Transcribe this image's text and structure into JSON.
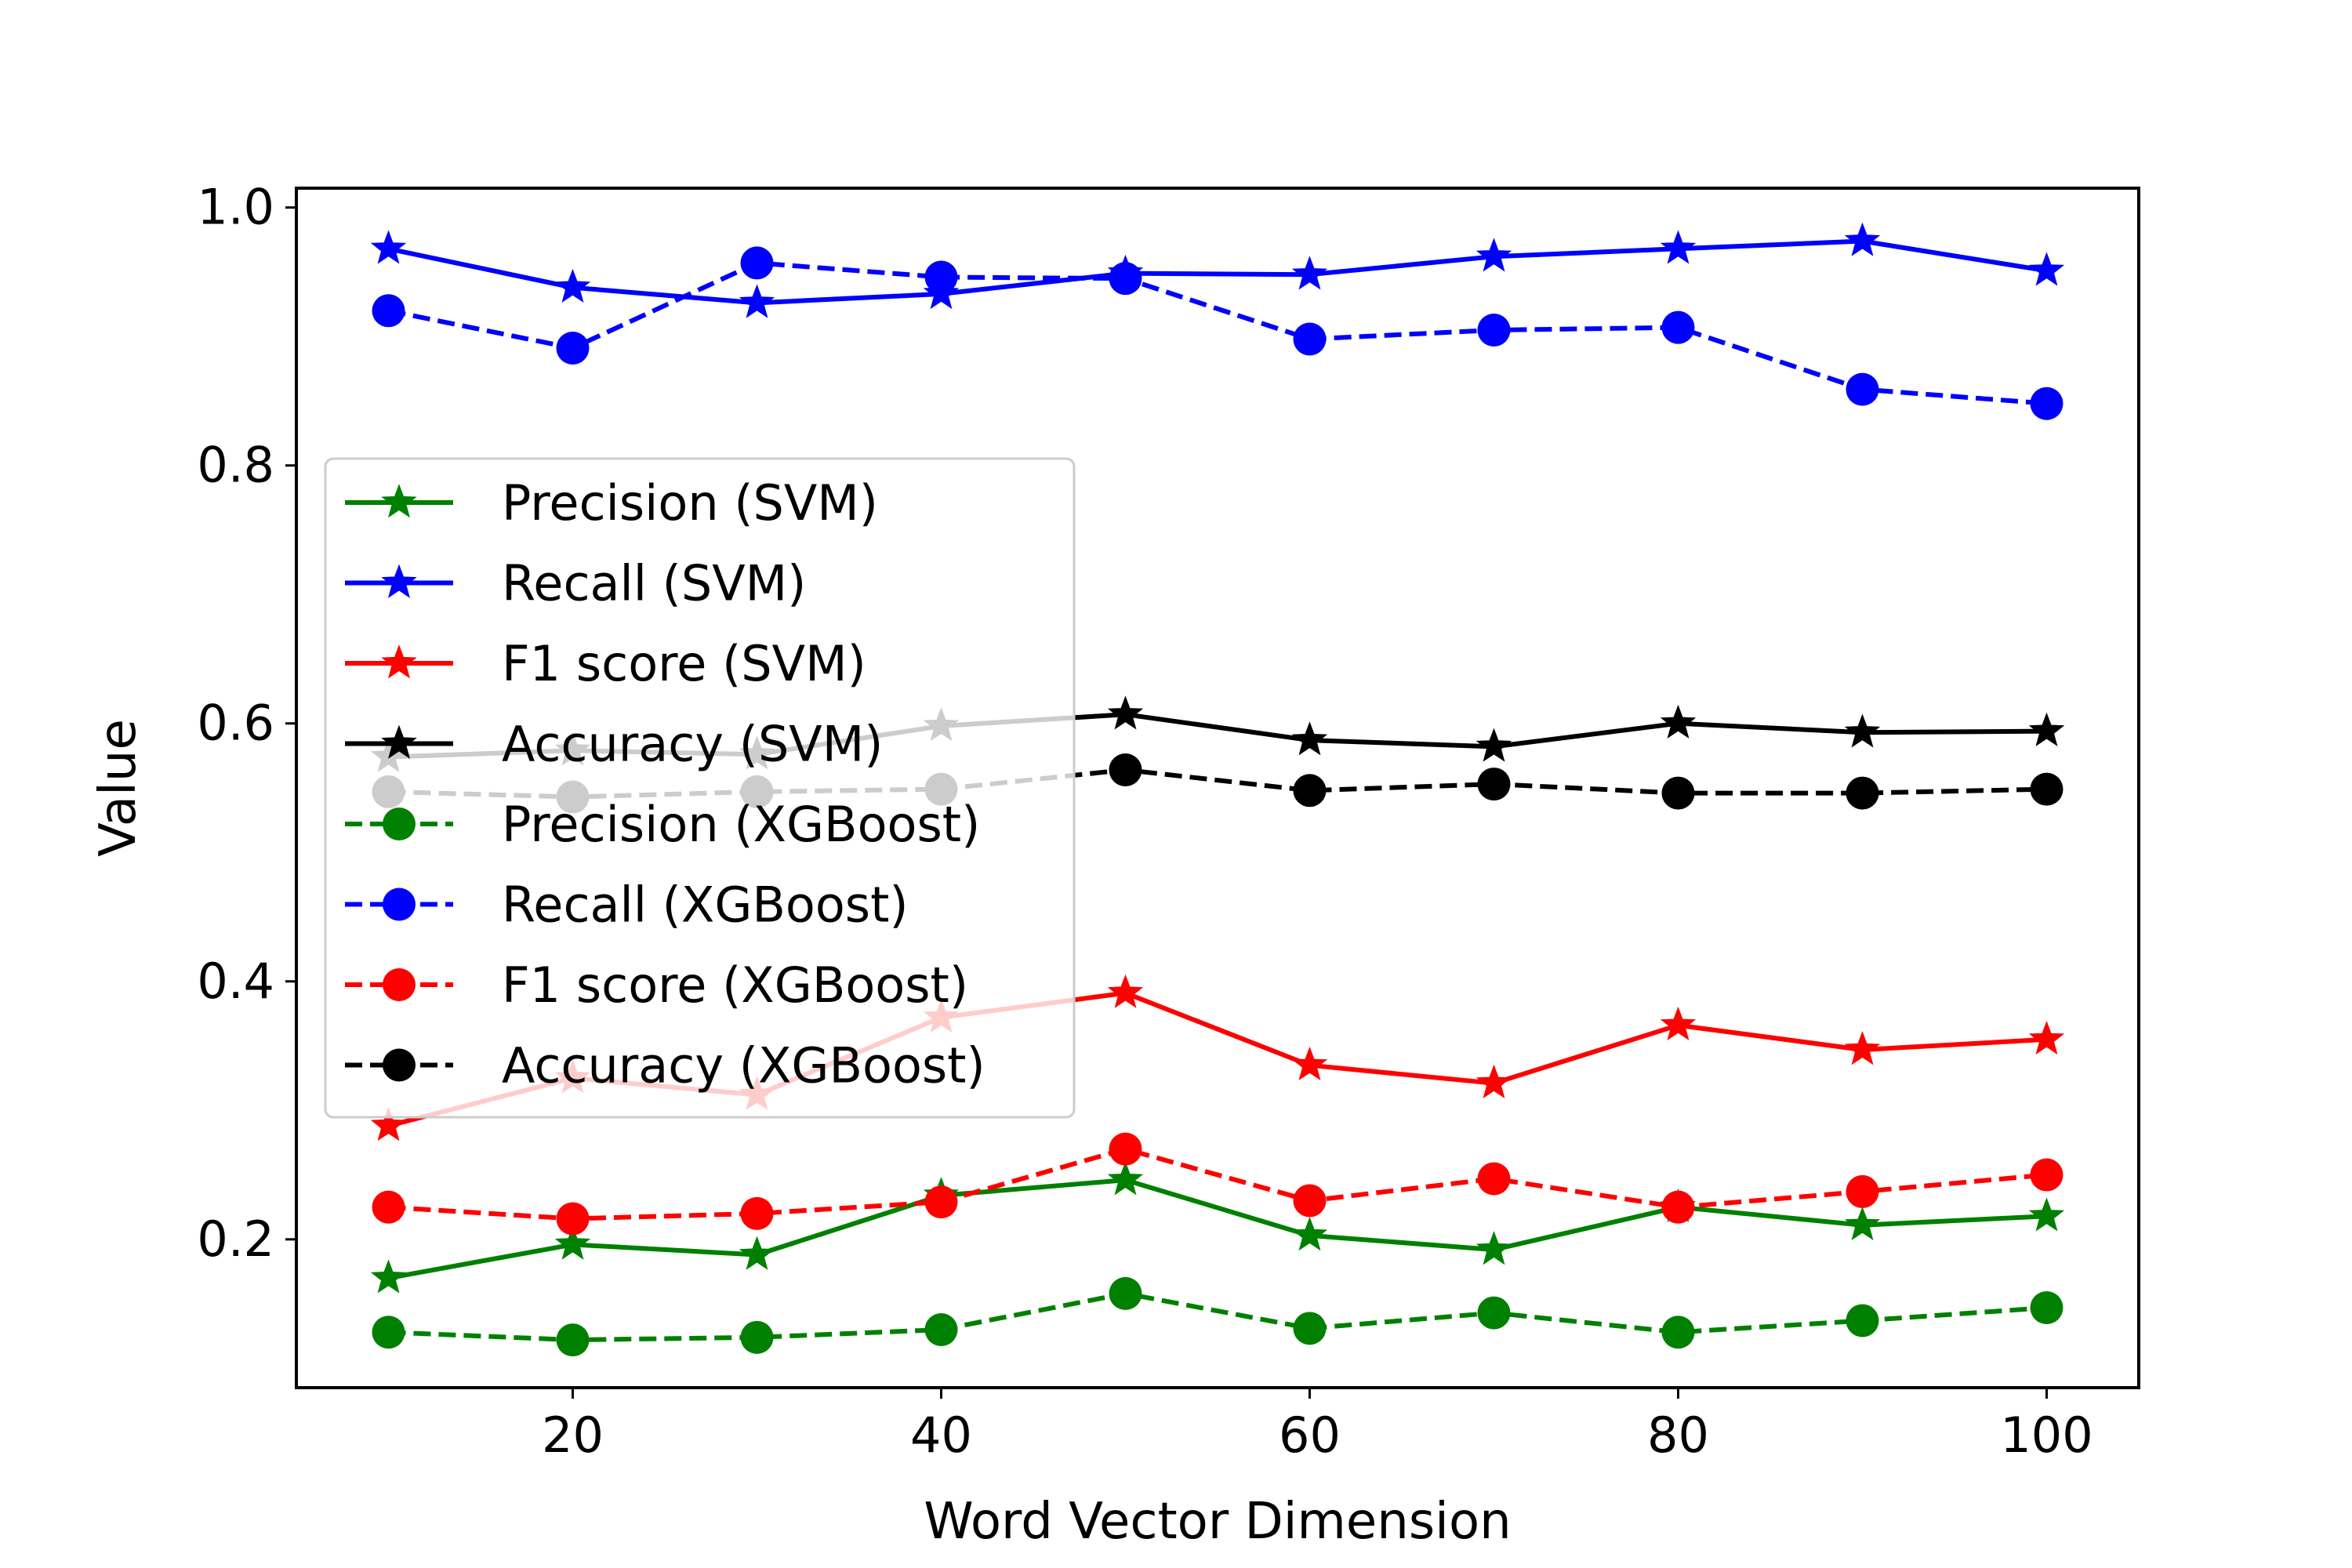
{
  "chart_data": {
    "type": "line",
    "title": "",
    "xlabel": "Word Vector Dimension",
    "ylabel": "Value",
    "x": [
      10,
      20,
      30,
      40,
      50,
      60,
      70,
      80,
      90,
      100
    ],
    "xlim": [
      5,
      105
    ],
    "ylim": [
      0.085,
      1.015
    ],
    "xticks": [
      20,
      40,
      60,
      80,
      100
    ],
    "yticks": [
      0.2,
      0.4,
      0.6,
      0.8,
      1.0
    ],
    "xtick_labels": [
      "20",
      "40",
      "60",
      "80",
      "100"
    ],
    "ytick_labels": [
      "0.2",
      "0.4",
      "0.6",
      "0.8",
      "1.0"
    ],
    "grid": false,
    "legend_position": "center-left",
    "series": [
      {
        "name": "Precision (SVM)",
        "color": "#008000",
        "linestyle": "solid",
        "marker": "star",
        "values": [
          0.17,
          0.196,
          0.188,
          0.234,
          0.246,
          0.203,
          0.192,
          0.225,
          0.211,
          0.218
        ]
      },
      {
        "name": "Recall (SVM)",
        "color": "#0000ff",
        "linestyle": "solid",
        "marker": "star",
        "values": [
          0.968,
          0.938,
          0.926,
          0.933,
          0.949,
          0.948,
          0.962,
          0.968,
          0.974,
          0.951
        ]
      },
      {
        "name": "F1 score (SVM)",
        "color": "#ff0000",
        "linestyle": "solid",
        "marker": "star",
        "values": [
          0.288,
          0.325,
          0.312,
          0.372,
          0.391,
          0.335,
          0.321,
          0.366,
          0.347,
          0.355
        ]
      },
      {
        "name": "Accuracy (SVM)",
        "color": "#000000",
        "linestyle": "solid",
        "marker": "star",
        "values": [
          0.574,
          0.579,
          0.576,
          0.598,
          0.607,
          0.587,
          0.582,
          0.6,
          0.593,
          0.594
        ]
      },
      {
        "name": "Precision (XGBoost)",
        "color": "#008000",
        "linestyle": "dashed",
        "marker": "circle",
        "values": [
          0.128,
          0.122,
          0.124,
          0.13,
          0.158,
          0.131,
          0.143,
          0.128,
          0.137,
          0.147
        ]
      },
      {
        "name": "Recall (XGBoost)",
        "color": "#0000ff",
        "linestyle": "dashed",
        "marker": "circle",
        "values": [
          0.92,
          0.891,
          0.957,
          0.946,
          0.945,
          0.898,
          0.905,
          0.907,
          0.859,
          0.848
        ]
      },
      {
        "name": "F1 score (XGBoost)",
        "color": "#ff0000",
        "linestyle": "dashed",
        "marker": "circle",
        "values": [
          0.225,
          0.216,
          0.22,
          0.229,
          0.27,
          0.23,
          0.247,
          0.225,
          0.237,
          0.25
        ]
      },
      {
        "name": "Accuracy (XGBoost)",
        "color": "#000000",
        "linestyle": "dashed",
        "marker": "circle",
        "values": [
          0.547,
          0.543,
          0.547,
          0.549,
          0.564,
          0.548,
          0.553,
          0.546,
          0.546,
          0.549
        ]
      }
    ]
  }
}
